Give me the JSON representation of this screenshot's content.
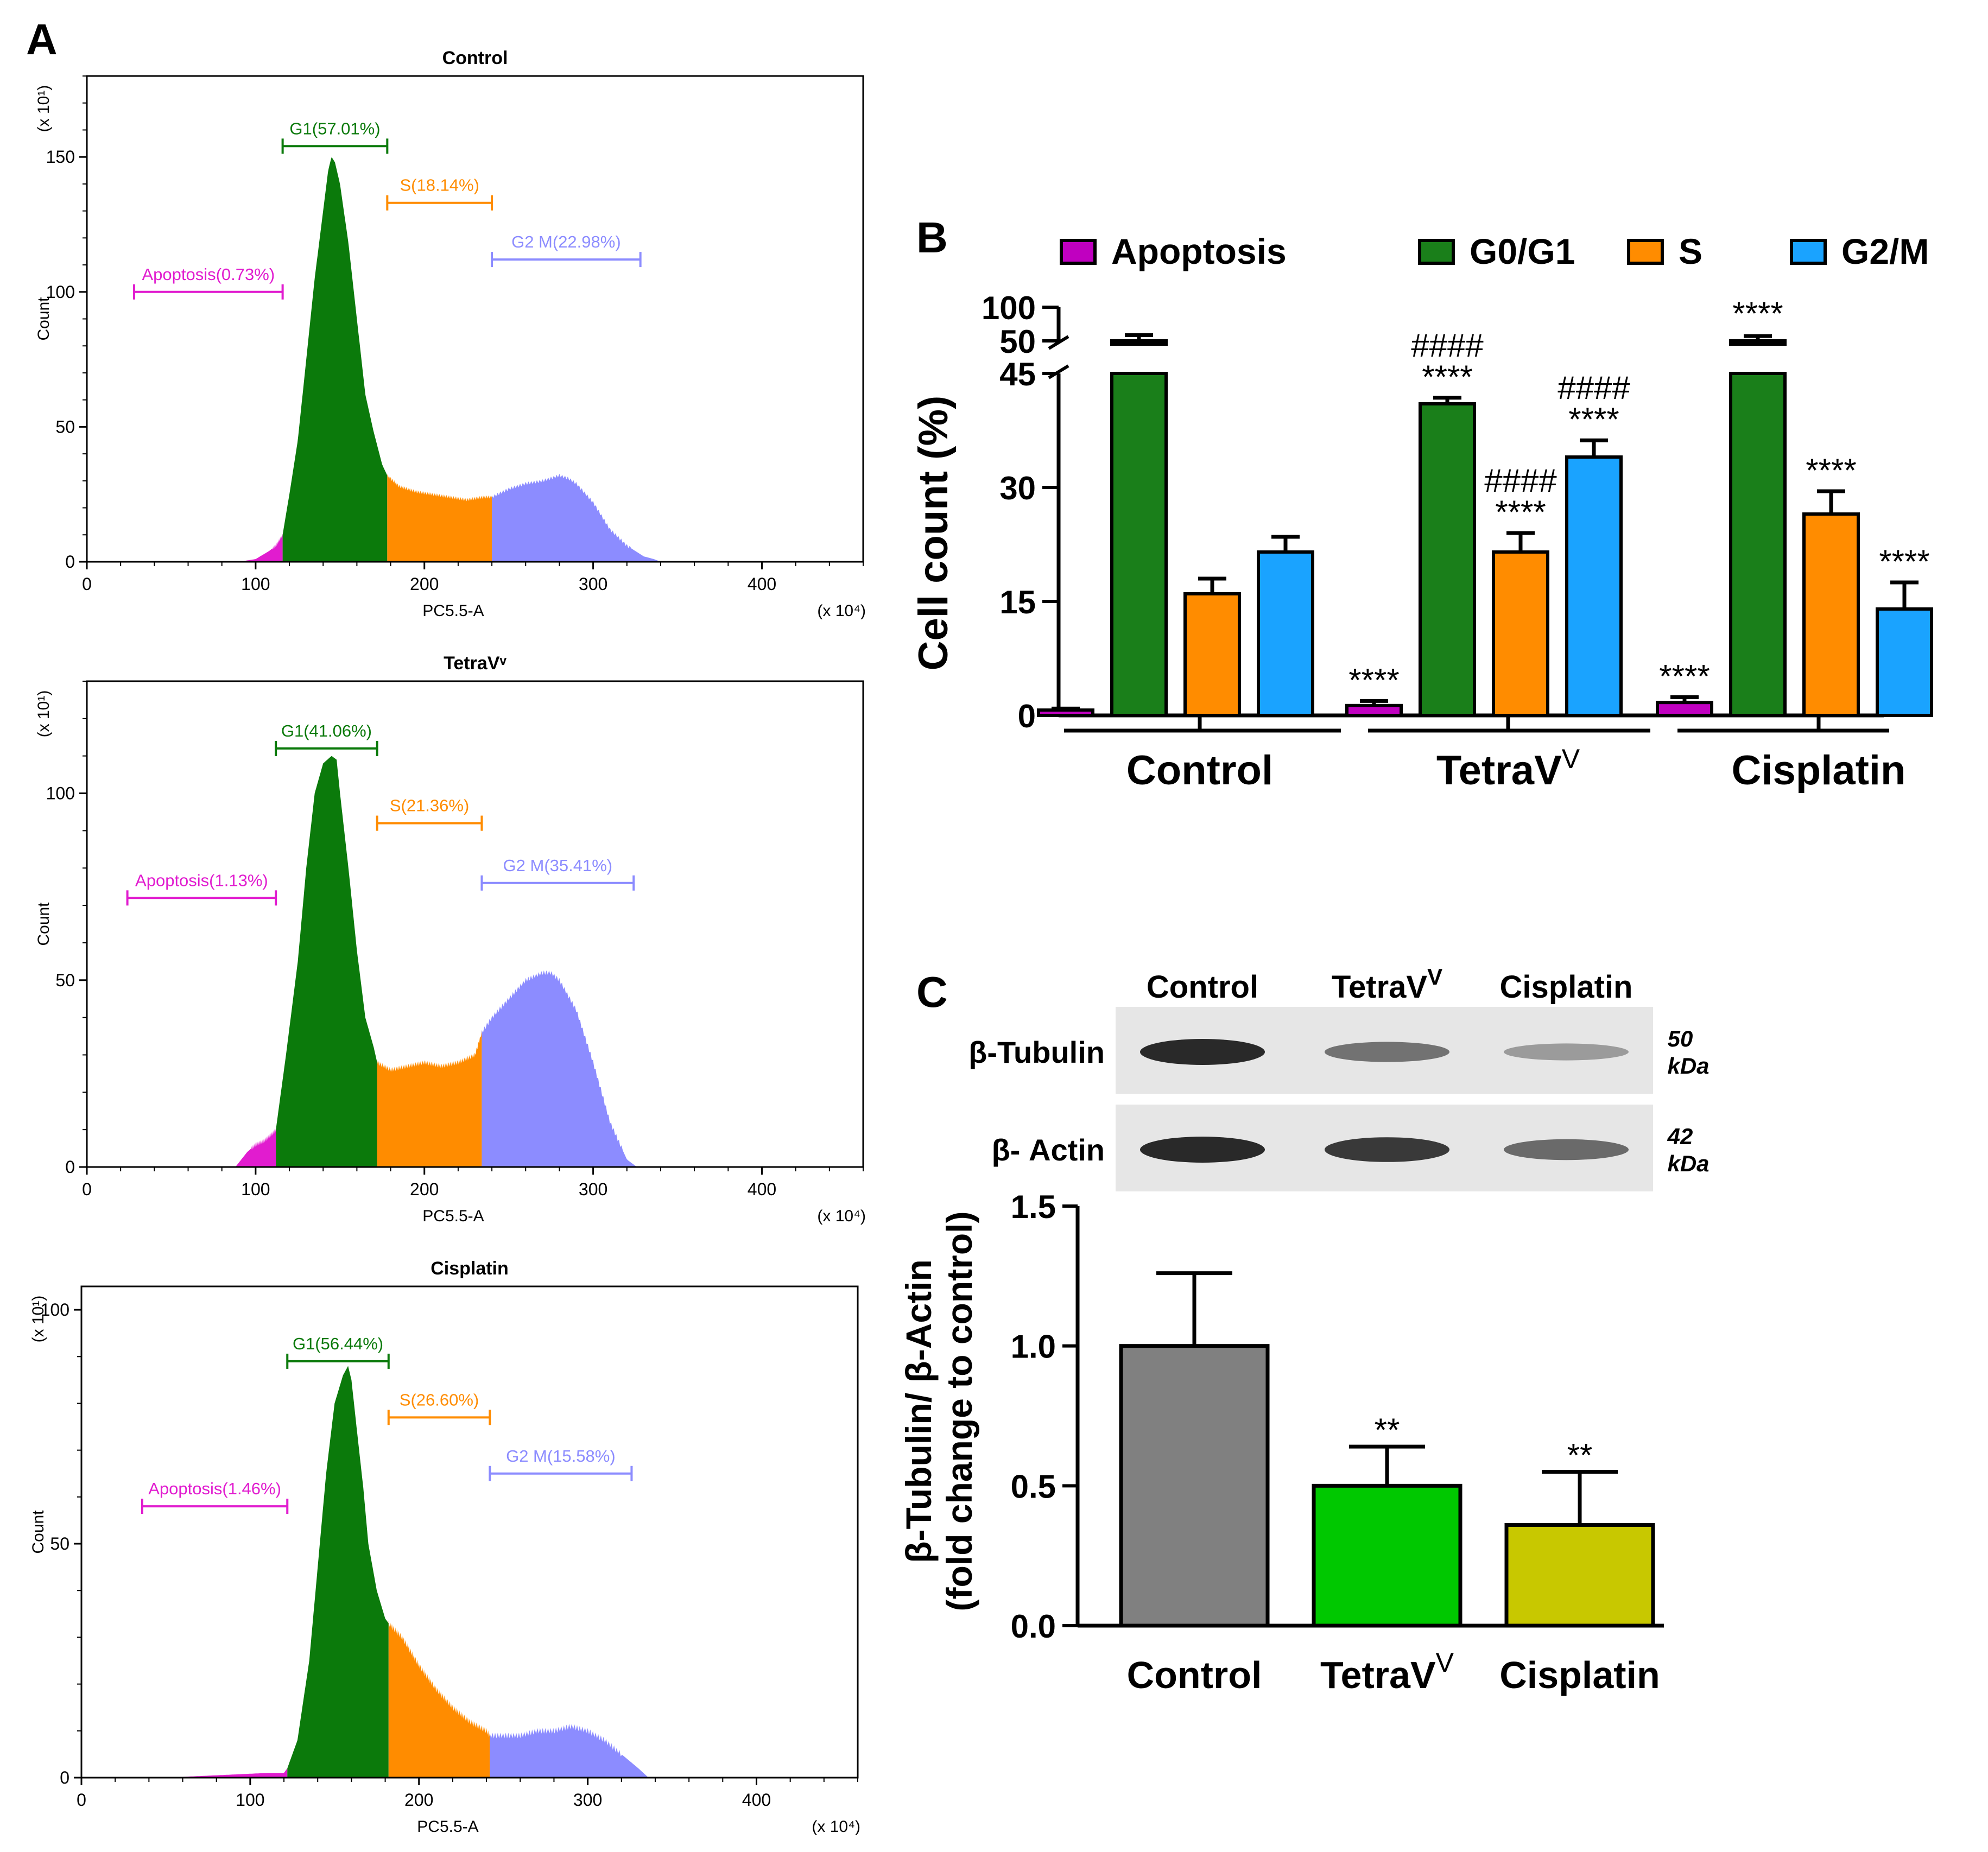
{
  "panel_labels": {
    "a": "A",
    "b": "B",
    "c": "C"
  },
  "colors": {
    "apoptosis": "#e11ccf",
    "g1": "#0b7a0b",
    "s": "#ff8c00",
    "g2m": "#8c8cff",
    "b_apoptosis": "#c000c0",
    "b_g0g1": "#1a7f1a",
    "b_s": "#ff8c00",
    "b_g2m": "#1aa3ff",
    "c_control": "#808080",
    "c_tetrav": "#00c800",
    "c_cisplatin": "#c8c800"
  },
  "chart_data": [
    {
      "type": "area",
      "title": "Control",
      "xlabel": "PC5.5-A",
      "ylabel": "Count",
      "y_multiplier": "(x 10¹)",
      "x_multiplier": "(x 10⁴)",
      "xlim": [
        0,
        460
      ],
      "ylim": [
        0,
        180
      ],
      "x_ticks": [
        "0",
        "100",
        "200",
        "300",
        "400"
      ],
      "y_ticks": [
        "0",
        "50",
        "100",
        "150"
      ],
      "gates": [
        {
          "name": "Apoptosis",
          "label": "Apoptosis(0.73%)",
          "x": [
            28,
            116
          ],
          "level": 100
        },
        {
          "name": "G1",
          "label": "G1(57.01%)",
          "x": [
            116,
            178
          ],
          "level": 154
        },
        {
          "name": "S",
          "label": "S(18.14%)",
          "x": [
            178,
            240
          ],
          "level": 133
        },
        {
          "name": "G2M",
          "label": "G2 M(22.98%)",
          "x": [
            240,
            328
          ],
          "level": 112
        }
      ],
      "histogram": {
        "x": [
          90,
          100,
          108,
          112,
          116,
          120,
          125,
          130,
          135,
          140,
          143,
          145,
          147,
          150,
          155,
          160,
          165,
          170,
          175,
          178,
          185,
          195,
          205,
          215,
          225,
          235,
          240,
          250,
          260,
          270,
          280,
          285,
          290,
          300,
          310,
          320,
          330,
          336,
          340
        ],
        "y": [
          0,
          1,
          4,
          6,
          10,
          25,
          45,
          75,
          105,
          130,
          145,
          150,
          148,
          140,
          118,
          90,
          62,
          48,
          36,
          32,
          28,
          26,
          25,
          24,
          23,
          24,
          24,
          27,
          29,
          30,
          32,
          31,
          29,
          22,
          12,
          6,
          2,
          1,
          0
        ]
      }
    },
    {
      "type": "area",
      "title": "TetraVᵛ",
      "xlabel": "PC5.5-A",
      "ylabel": "Count",
      "y_multiplier": "(x 10¹)",
      "x_multiplier": "(x 10⁴)",
      "xlim": [
        0,
        460
      ],
      "ylim": [
        0,
        130
      ],
      "x_ticks": [
        "0",
        "100",
        "200",
        "300",
        "400"
      ],
      "y_ticks": [
        "0",
        "50",
        "100"
      ],
      "gates": [
        {
          "name": "Apoptosis",
          "label": "Apoptosis(1.13%)",
          "x": [
            24,
            112
          ],
          "level": 72
        },
        {
          "name": "G1",
          "label": "G1(41.06%)",
          "x": [
            112,
            172
          ],
          "level": 112
        },
        {
          "name": "S",
          "label": "S(21.36%)",
          "x": [
            172,
            234
          ],
          "level": 92
        },
        {
          "name": "G2M",
          "label": "G2 M(35.41%)",
          "x": [
            234,
            324
          ],
          "level": 76
        }
      ],
      "histogram": {
        "x": [
          88,
          95,
          100,
          105,
          110,
          112,
          118,
          125,
          130,
          135,
          140,
          145,
          148,
          150,
          155,
          160,
          165,
          170,
          172,
          180,
          190,
          200,
          210,
          220,
          230,
          234,
          240,
          250,
          260,
          270,
          275,
          280,
          290,
          300,
          310,
          320,
          326
        ],
        "y": [
          0,
          4,
          6,
          7,
          9,
          10,
          30,
          55,
          80,
          100,
          108,
          110,
          109,
          100,
          80,
          58,
          40,
          32,
          28,
          26,
          27,
          28,
          27,
          28,
          30,
          36,
          40,
          45,
          50,
          52,
          52,
          50,
          42,
          28,
          12,
          2,
          0
        ]
      }
    },
    {
      "type": "area",
      "title": "Cisplatin",
      "xlabel": "PC5.5-A",
      "ylabel": "Count",
      "y_multiplier": "(x 10¹)",
      "x_multiplier": "(x 10⁴)",
      "xlim": [
        0,
        460
      ],
      "ylim": [
        0,
        105
      ],
      "x_ticks": [
        "0",
        "100",
        "200",
        "300",
        "400"
      ],
      "y_ticks": [
        "0",
        "50",
        "100"
      ],
      "gates": [
        {
          "name": "Apoptosis",
          "label": "Apoptosis(1.46%)",
          "x": [
            36,
            122
          ],
          "level": 58
        },
        {
          "name": "G1",
          "label": "G1(56.44%)",
          "x": [
            122,
            182
          ],
          "level": 89
        },
        {
          "name": "S",
          "label": "S(26.60%)",
          "x": [
            182,
            242
          ],
          "level": 77
        },
        {
          "name": "G2M",
          "label": "G2 M(15.58%)",
          "x": [
            242,
            326
          ],
          "level": 65
        }
      ],
      "histogram": {
        "x": [
          50,
          80,
          110,
          120,
          122,
          128,
          135,
          140,
          145,
          150,
          155,
          158,
          160,
          163,
          167,
          170,
          175,
          180,
          182,
          190,
          200,
          210,
          220,
          230,
          240,
          242,
          250,
          260,
          270,
          280,
          290,
          300,
          310,
          320,
          330,
          336
        ],
        "y": [
          0,
          0.5,
          1,
          1,
          2,
          8,
          25,
          45,
          65,
          80,
          86,
          88,
          85,
          75,
          62,
          50,
          40,
          34,
          33,
          30,
          24,
          19,
          15,
          12,
          10,
          9,
          9,
          9,
          10,
          10,
          11,
          10,
          8,
          5,
          2,
          0
        ]
      }
    },
    {
      "type": "bar",
      "title": "",
      "ylabel": "Cell count (%)",
      "categories": [
        "Control",
        "TetraV",
        "Cisplatin"
      ],
      "category_superscripts": [
        "",
        "V",
        ""
      ],
      "series": [
        {
          "name": "Apoptosis",
          "values": [
            0.7,
            1.3,
            1.7
          ],
          "errors": [
            0.2,
            0.6,
            0.7
          ],
          "annotations": [
            "",
            "****",
            "****"
          ]
        },
        {
          "name": "G0/G1",
          "values": [
            57,
            41,
            56
          ],
          "errors": [
            1.5,
            0.8,
            1.2
          ],
          "annotations": [
            "",
            "****|####",
            "****"
          ]
        },
        {
          "name": "S",
          "values": [
            16,
            21.5,
            26.5
          ],
          "errors": [
            2,
            2.5,
            3
          ],
          "annotations": [
            "",
            "****|####",
            "****"
          ]
        },
        {
          "name": "G2/M",
          "values": [
            21.5,
            34,
            14
          ],
          "errors": [
            2,
            2.2,
            3.5
          ],
          "annotations": [
            "",
            "****|####",
            "****"
          ]
        }
      ],
      "ylim_lower": [
        0,
        45
      ],
      "ylim_upper": [
        50,
        100
      ],
      "y_ticks": [
        "0",
        "15",
        "30",
        "45",
        "50",
        "100"
      ]
    },
    {
      "type": "bar",
      "title": "",
      "ylabel": "β-Tubulin/ β-Actin",
      "ylabel2": "(fold change to control)",
      "categories": [
        "Control",
        "TetraV",
        "Cisplatin"
      ],
      "category_superscripts": [
        "",
        "V",
        ""
      ],
      "values": [
        1.0,
        0.5,
        0.36
      ],
      "errors": [
        0.26,
        0.14,
        0.19
      ],
      "annotations": [
        "",
        "**",
        "**"
      ],
      "ylim": [
        0,
        1.5
      ],
      "y_ticks": [
        "0.0",
        "0.5",
        "1.0",
        "1.5"
      ]
    }
  ],
  "western_blot": {
    "lanes": [
      "Control",
      "TetraV",
      "Cisplatin"
    ],
    "lane_superscripts": [
      "",
      "V",
      ""
    ],
    "rows": [
      {
        "label": "β-Tubulin",
        "kda_number": "50",
        "kda_unit": "kDa",
        "intensity": [
          1.0,
          0.55,
          0.3
        ]
      },
      {
        "label": "β- Actin",
        "kda_number": "42",
        "kda_unit": "kDa",
        "intensity": [
          1.0,
          0.9,
          0.6
        ]
      }
    ]
  }
}
